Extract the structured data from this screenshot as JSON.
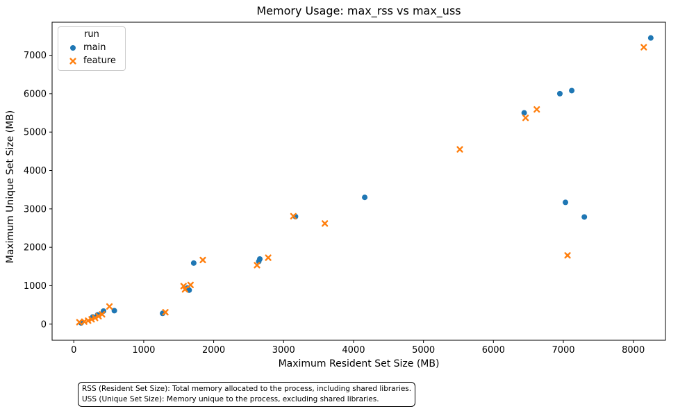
{
  "figure": {
    "title": "Memory Usage: max_rss vs max_uss",
    "footnote_line1": "RSS (Resident Set Size): Total memory allocated to the process, including shared libraries.",
    "footnote_line2": "USS (Unique Set Size): Memory unique to the process, excluding shared libraries."
  },
  "legend": {
    "title": "run",
    "entries": [
      {
        "label": "main",
        "marker": "circle",
        "color": "#1f77b4"
      },
      {
        "label": "feature",
        "marker": "x",
        "color": "#ff7f0e"
      }
    ]
  },
  "chart_data": {
    "type": "scatter",
    "title": "Memory Usage: max_rss vs max_uss",
    "xlabel": "Maximum Resident Set Size (MB)",
    "ylabel": "Maximum Unique Set Size (MB)",
    "xlim": [
      -310,
      8460
    ],
    "ylim": [
      -420,
      7860
    ],
    "x_ticks": [
      0,
      1000,
      2000,
      3000,
      4000,
      5000,
      6000,
      7000,
      8000
    ],
    "y_ticks": [
      0,
      1000,
      2000,
      3000,
      4000,
      5000,
      6000,
      7000
    ],
    "grid": false,
    "legend_position": "upper left",
    "series": [
      {
        "name": "main",
        "marker": "circle",
        "color": "#1f77b4",
        "points": [
          [
            105,
            30
          ],
          [
            270,
            185
          ],
          [
            340,
            240
          ],
          [
            425,
            340
          ],
          [
            580,
            350
          ],
          [
            1270,
            280
          ],
          [
            1625,
            940
          ],
          [
            1650,
            885
          ],
          [
            1715,
            1590
          ],
          [
            2645,
            1630
          ],
          [
            2660,
            1695
          ],
          [
            3170,
            2800
          ],
          [
            4160,
            3300
          ],
          [
            6440,
            5500
          ],
          [
            6950,
            6000
          ],
          [
            7120,
            6080
          ],
          [
            7030,
            3170
          ],
          [
            7300,
            2790
          ],
          [
            8250,
            7450
          ]
        ]
      },
      {
        "name": "feature",
        "marker": "x",
        "color": "#ff7f0e",
        "points": [
          [
            80,
            50
          ],
          [
            150,
            65
          ],
          [
            205,
            90
          ],
          [
            255,
            125
          ],
          [
            305,
            160
          ],
          [
            355,
            205
          ],
          [
            405,
            255
          ],
          [
            510,
            460
          ],
          [
            1310,
            310
          ],
          [
            1570,
            990
          ],
          [
            1590,
            905
          ],
          [
            1670,
            1020
          ],
          [
            1845,
            1670
          ],
          [
            2620,
            1535
          ],
          [
            2780,
            1730
          ],
          [
            3140,
            2810
          ],
          [
            3590,
            2620
          ],
          [
            5520,
            4550
          ],
          [
            6460,
            5370
          ],
          [
            6620,
            5590
          ],
          [
            7060,
            1790
          ],
          [
            8150,
            7210
          ]
        ]
      }
    ]
  }
}
